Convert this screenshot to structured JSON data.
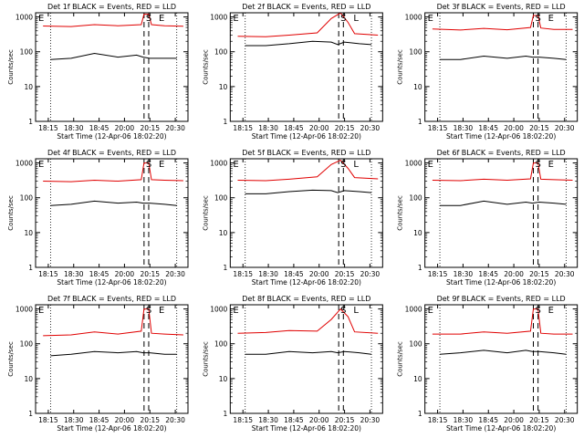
{
  "figure": {
    "xlabel": "Start Time (12-Apr-06 18:02:20)",
    "ylabel": "Counts/sec",
    "series_colors": {
      "events": "#000000",
      "lld": "#e00000"
    },
    "x_tick_labels": [
      "18:15",
      "18:30",
      "18:45",
      "20:00",
      "20:15",
      "20:30"
    ],
    "y_tick_labels": [
      "1",
      "10",
      "100",
      "1000"
    ],
    "time_markers": [
      "E",
      "S",
      "E"
    ],
    "dashed_line_times": [
      "19:58",
      "20:03"
    ],
    "dotted_line_times": [
      "18:18",
      "20:33"
    ]
  },
  "chart_data": [
    {
      "id": "1f",
      "type": "line",
      "title": "Det 1f BLACK = Events, RED = LLD",
      "markers": [
        "E",
        "S",
        "E"
      ],
      "yscale": "log",
      "ylim": [
        1,
        1000
      ],
      "events": [
        {
          "x": "18:18",
          "y": 60
        },
        {
          "x": "18:40",
          "y": 65
        },
        {
          "x": "19:05",
          "y": 90
        },
        {
          "x": "19:30",
          "y": 70
        },
        {
          "x": "19:50",
          "y": 80
        },
        {
          "x": "19:57",
          "y": 70
        },
        {
          "x": "20:04",
          "y": 65
        },
        {
          "x": "20:20",
          "y": 65
        },
        {
          "x": "20:33",
          "y": 65
        }
      ],
      "lld": [
        {
          "x": "18:10",
          "y": 550
        },
        {
          "x": "18:40",
          "y": 530
        },
        {
          "x": "19:05",
          "y": 600
        },
        {
          "x": "19:30",
          "y": 560
        },
        {
          "x": "19:55",
          "y": 600
        },
        {
          "x": "19:58",
          "y": 1200
        },
        {
          "x": "20:03",
          "y": 1200
        },
        {
          "x": "20:06",
          "y": 600
        },
        {
          "x": "20:20",
          "y": 560
        },
        {
          "x": "20:40",
          "y": 540
        }
      ]
    },
    {
      "id": "2f",
      "type": "line",
      "title": "Det 2f BLACK = Events, RED = LLD",
      "markers": [
        "E",
        "S",
        "L"
      ],
      "yscale": "log",
      "ylim": [
        1,
        1000
      ],
      "events": [
        {
          "x": "18:18",
          "y": 150
        },
        {
          "x": "18:40",
          "y": 150
        },
        {
          "x": "19:05",
          "y": 170
        },
        {
          "x": "19:30",
          "y": 200
        },
        {
          "x": "19:50",
          "y": 190
        },
        {
          "x": "19:57",
          "y": 160
        },
        {
          "x": "20:04",
          "y": 190
        },
        {
          "x": "20:20",
          "y": 170
        },
        {
          "x": "20:33",
          "y": 160
        }
      ],
      "lld": [
        {
          "x": "18:10",
          "y": 280
        },
        {
          "x": "18:40",
          "y": 270
        },
        {
          "x": "19:05",
          "y": 300
        },
        {
          "x": "19:35",
          "y": 350
        },
        {
          "x": "19:50",
          "y": 900
        },
        {
          "x": "20:00",
          "y": 1300
        },
        {
          "x": "20:08",
          "y": 700
        },
        {
          "x": "20:15",
          "y": 330
        },
        {
          "x": "20:40",
          "y": 300
        }
      ]
    },
    {
      "id": "3f",
      "type": "line",
      "title": "Det 3f BLACK = Events, RED = LLD",
      "markers": [
        "E",
        "S",
        "E"
      ],
      "yscale": "log",
      "ylim": [
        1,
        1000
      ],
      "events": [
        {
          "x": "18:18",
          "y": 60
        },
        {
          "x": "18:40",
          "y": 60
        },
        {
          "x": "19:05",
          "y": 75
        },
        {
          "x": "19:30",
          "y": 65
        },
        {
          "x": "19:50",
          "y": 75
        },
        {
          "x": "19:57",
          "y": 70
        },
        {
          "x": "20:04",
          "y": 70
        },
        {
          "x": "20:20",
          "y": 65
        },
        {
          "x": "20:33",
          "y": 60
        }
      ],
      "lld": [
        {
          "x": "18:10",
          "y": 450
        },
        {
          "x": "18:40",
          "y": 420
        },
        {
          "x": "19:05",
          "y": 470
        },
        {
          "x": "19:30",
          "y": 430
        },
        {
          "x": "19:55",
          "y": 500
        },
        {
          "x": "19:58",
          "y": 1100
        },
        {
          "x": "20:03",
          "y": 1100
        },
        {
          "x": "20:06",
          "y": 480
        },
        {
          "x": "20:20",
          "y": 440
        },
        {
          "x": "20:40",
          "y": 440
        }
      ]
    },
    {
      "id": "4f",
      "type": "line",
      "title": "Det 4f BLACK = Events, RED = LLD",
      "markers": [
        "E",
        "S",
        "E"
      ],
      "yscale": "log",
      "ylim": [
        1,
        1000
      ],
      "events": [
        {
          "x": "18:18",
          "y": 60
        },
        {
          "x": "18:40",
          "y": 65
        },
        {
          "x": "19:05",
          "y": 80
        },
        {
          "x": "19:30",
          "y": 70
        },
        {
          "x": "19:50",
          "y": 75
        },
        {
          "x": "19:57",
          "y": 70
        },
        {
          "x": "20:04",
          "y": 70
        },
        {
          "x": "20:20",
          "y": 65
        },
        {
          "x": "20:33",
          "y": 60
        }
      ],
      "lld": [
        {
          "x": "18:10",
          "y": 300
        },
        {
          "x": "18:40",
          "y": 290
        },
        {
          "x": "19:05",
          "y": 320
        },
        {
          "x": "19:30",
          "y": 300
        },
        {
          "x": "19:55",
          "y": 330
        },
        {
          "x": "19:58",
          "y": 1000
        },
        {
          "x": "20:03",
          "y": 1000
        },
        {
          "x": "20:06",
          "y": 330
        },
        {
          "x": "20:20",
          "y": 320
        },
        {
          "x": "20:40",
          "y": 310
        }
      ]
    },
    {
      "id": "5f",
      "type": "line",
      "title": "Det 5f BLACK = Events, RED = LLD",
      "markers": [
        "E",
        "S",
        "L"
      ],
      "yscale": "log",
      "ylim": [
        1,
        1000
      ],
      "events": [
        {
          "x": "18:18",
          "y": 130
        },
        {
          "x": "18:40",
          "y": 130
        },
        {
          "x": "19:05",
          "y": 150
        },
        {
          "x": "19:30",
          "y": 165
        },
        {
          "x": "19:50",
          "y": 160
        },
        {
          "x": "19:57",
          "y": 140
        },
        {
          "x": "20:04",
          "y": 160
        },
        {
          "x": "20:20",
          "y": 150
        },
        {
          "x": "20:33",
          "y": 140
        }
      ],
      "lld": [
        {
          "x": "18:10",
          "y": 320
        },
        {
          "x": "18:40",
          "y": 310
        },
        {
          "x": "19:05",
          "y": 340
        },
        {
          "x": "19:35",
          "y": 400
        },
        {
          "x": "19:50",
          "y": 900
        },
        {
          "x": "20:00",
          "y": 1200
        },
        {
          "x": "20:08",
          "y": 700
        },
        {
          "x": "20:15",
          "y": 380
        },
        {
          "x": "20:40",
          "y": 350
        }
      ]
    },
    {
      "id": "6f",
      "type": "line",
      "title": "Det 6f BLACK = Events, RED = LLD",
      "markers": [
        "E",
        "S",
        "E"
      ],
      "yscale": "log",
      "ylim": [
        1,
        1000
      ],
      "events": [
        {
          "x": "18:18",
          "y": 60
        },
        {
          "x": "18:40",
          "y": 60
        },
        {
          "x": "19:05",
          "y": 80
        },
        {
          "x": "19:30",
          "y": 65
        },
        {
          "x": "19:50",
          "y": 75
        },
        {
          "x": "19:57",
          "y": 70
        },
        {
          "x": "20:04",
          "y": 75
        },
        {
          "x": "20:20",
          "y": 70
        },
        {
          "x": "20:33",
          "y": 65
        }
      ],
      "lld": [
        {
          "x": "18:10",
          "y": 320
        },
        {
          "x": "18:40",
          "y": 310
        },
        {
          "x": "19:05",
          "y": 340
        },
        {
          "x": "19:30",
          "y": 320
        },
        {
          "x": "19:55",
          "y": 350
        },
        {
          "x": "19:58",
          "y": 1000
        },
        {
          "x": "20:03",
          "y": 1000
        },
        {
          "x": "20:06",
          "y": 340
        },
        {
          "x": "20:20",
          "y": 330
        },
        {
          "x": "20:40",
          "y": 320
        }
      ]
    },
    {
      "id": "7f",
      "type": "line",
      "title": "Det 7f BLACK = Events, RED = LLD",
      "markers": [
        "E",
        "S",
        "E"
      ],
      "yscale": "log",
      "ylim": [
        1,
        1000
      ],
      "events": [
        {
          "x": "18:18",
          "y": 45
        },
        {
          "x": "18:40",
          "y": 50
        },
        {
          "x": "19:05",
          "y": 60
        },
        {
          "x": "19:30",
          "y": 55
        },
        {
          "x": "19:50",
          "y": 60
        },
        {
          "x": "19:57",
          "y": 55
        },
        {
          "x": "20:04",
          "y": 55
        },
        {
          "x": "20:20",
          "y": 50
        },
        {
          "x": "20:33",
          "y": 50
        }
      ],
      "lld": [
        {
          "x": "18:10",
          "y": 170
        },
        {
          "x": "18:40",
          "y": 180
        },
        {
          "x": "19:05",
          "y": 220
        },
        {
          "x": "19:30",
          "y": 190
        },
        {
          "x": "19:55",
          "y": 230
        },
        {
          "x": "19:58",
          "y": 1000
        },
        {
          "x": "20:03",
          "y": 1000
        },
        {
          "x": "20:06",
          "y": 200
        },
        {
          "x": "20:20",
          "y": 190
        },
        {
          "x": "20:40",
          "y": 180
        }
      ]
    },
    {
      "id": "8f",
      "type": "line",
      "title": "Det 8f BLACK = Events, RED = LLD",
      "markers": [
        "E",
        "S",
        "L"
      ],
      "yscale": "log",
      "ylim": [
        1,
        1000
      ],
      "events": [
        {
          "x": "18:18",
          "y": 50
        },
        {
          "x": "18:40",
          "y": 50
        },
        {
          "x": "19:05",
          "y": 60
        },
        {
          "x": "19:30",
          "y": 55
        },
        {
          "x": "19:50",
          "y": 60
        },
        {
          "x": "19:57",
          "y": 55
        },
        {
          "x": "20:04",
          "y": 60
        },
        {
          "x": "20:20",
          "y": 55
        },
        {
          "x": "20:33",
          "y": 50
        }
      ],
      "lld": [
        {
          "x": "18:10",
          "y": 200
        },
        {
          "x": "18:40",
          "y": 210
        },
        {
          "x": "19:05",
          "y": 240
        },
        {
          "x": "19:35",
          "y": 230
        },
        {
          "x": "19:50",
          "y": 500
        },
        {
          "x": "20:00",
          "y": 1000
        },
        {
          "x": "20:08",
          "y": 600
        },
        {
          "x": "20:15",
          "y": 220
        },
        {
          "x": "20:40",
          "y": 200
        }
      ]
    },
    {
      "id": "9f",
      "type": "line",
      "title": "Det 9f BLACK = Events, RED = LLD",
      "markers": [
        "E",
        "S",
        "E"
      ],
      "yscale": "log",
      "ylim": [
        1,
        1000
      ],
      "events": [
        {
          "x": "18:18",
          "y": 50
        },
        {
          "x": "18:40",
          "y": 55
        },
        {
          "x": "19:05",
          "y": 65
        },
        {
          "x": "19:30",
          "y": 55
        },
        {
          "x": "19:50",
          "y": 65
        },
        {
          "x": "19:57",
          "y": 60
        },
        {
          "x": "20:04",
          "y": 60
        },
        {
          "x": "20:20",
          "y": 55
        },
        {
          "x": "20:33",
          "y": 50
        }
      ],
      "lld": [
        {
          "x": "18:10",
          "y": 190
        },
        {
          "x": "18:40",
          "y": 190
        },
        {
          "x": "19:05",
          "y": 220
        },
        {
          "x": "19:30",
          "y": 200
        },
        {
          "x": "19:55",
          "y": 230
        },
        {
          "x": "19:58",
          "y": 1000
        },
        {
          "x": "20:03",
          "y": 1000
        },
        {
          "x": "20:06",
          "y": 200
        },
        {
          "x": "20:20",
          "y": 190
        },
        {
          "x": "20:40",
          "y": 190
        }
      ]
    }
  ]
}
